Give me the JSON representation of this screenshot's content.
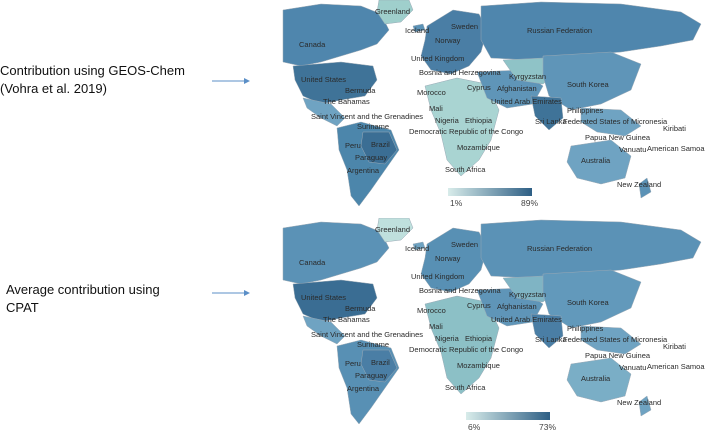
{
  "panels": [
    {
      "label": "Contribution using GEOS-Chem\n(Vohra et al. 2019)",
      "legend": {
        "min": "1%",
        "max": "89%",
        "color_low": "#d8ecea",
        "color_high": "#2e5f85"
      },
      "places": [
        "Greenland",
        "Iceland",
        "Sweden",
        "Norway",
        "Canada",
        "Russian Federation",
        "United Kingdom",
        "Bosnia and Herzegovina",
        "Kyrgyzstan",
        "United States",
        "Bermuda",
        "Morocco",
        "Cyprus",
        "Afghanistan",
        "South Korea",
        "The Bahamas",
        "Mali",
        "United Arab Emirates",
        "Philippines",
        "Saint Vincent and the Grenadines",
        "Nigeria",
        "Ethiopia",
        "Sri Lanka",
        "Federated States of Micronesia",
        "Kiribati",
        "Suriname",
        "Democratic Republic of the Congo",
        "Papua New Guinea",
        "Peru",
        "Brazil",
        "Vanuatu",
        "American Samoa",
        "Paraguay",
        "Mozambique",
        "Australia",
        "Argentina",
        "South Africa",
        "New Zealand"
      ]
    },
    {
      "label": "Average contribution using\nCPAT",
      "legend": {
        "min": "6%",
        "max": "73%",
        "color_low": "#d8ecea",
        "color_high": "#2e5f85"
      },
      "places": [
        "Greenland",
        "Iceland",
        "Sweden",
        "Norway",
        "Canada",
        "Russian Federation",
        "United Kingdom",
        "Bosnia and Herzegovina",
        "Kyrgyzstan",
        "United States",
        "Bermuda",
        "Morocco",
        "Cyprus",
        "Afghanistan",
        "South Korea",
        "The Bahamas",
        "Mali",
        "United Arab Emirates",
        "Philippines",
        "Saint Vincent and the Grenadines",
        "Nigeria",
        "Ethiopia",
        "Sri Lanka",
        "Federated States of Micronesia",
        "Kiribati",
        "Suriname",
        "Democratic Republic of the Congo",
        "Papua New Guinea",
        "Peru",
        "Brazil",
        "Vanuatu",
        "American Samoa",
        "Paraguay",
        "Mozambique",
        "Australia",
        "Argentina",
        "South Africa",
        "New Zealand"
      ]
    }
  ],
  "colors": {
    "ocean": "#ffffff",
    "border": "#9aa9b5",
    "arrow": "#5b8fc7"
  }
}
